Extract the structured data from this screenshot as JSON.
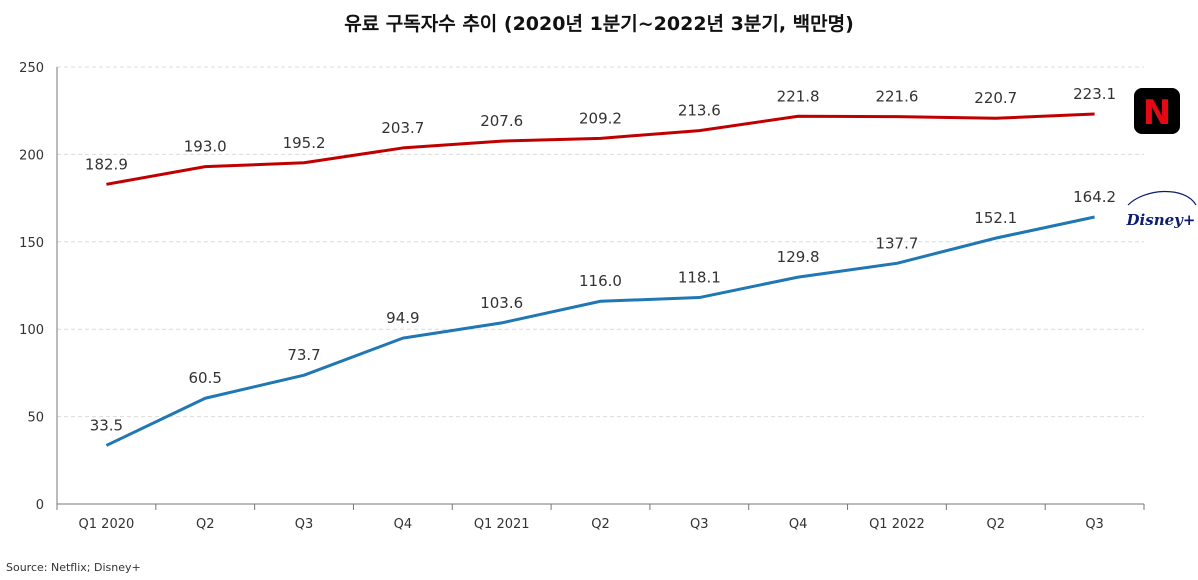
{
  "chart_data": {
    "type": "line",
    "title": "유료 구독자수 추이 (2020년 1분기~2022년 3분기, 백만명)",
    "categories": [
      "Q1 2020",
      "Q2",
      "Q3",
      "Q4",
      "Q1 2021",
      "Q2",
      "Q3",
      "Q4",
      "Q1 2022",
      "Q2",
      "Q3"
    ],
    "series": [
      {
        "name": "Netflix",
        "color": "#c00000",
        "values": [
          182.9,
          193.0,
          195.2,
          203.7,
          207.6,
          209.2,
          213.6,
          221.8,
          221.6,
          220.7,
          223.1
        ]
      },
      {
        "name": "Disney+",
        "color": "#1f77b4",
        "values": [
          33.5,
          60.5,
          73.7,
          94.9,
          103.6,
          116.0,
          118.1,
          129.8,
          137.7,
          152.1,
          164.2
        ]
      }
    ],
    "ylim": [
      0,
      250
    ],
    "yticks": [
      0,
      50,
      100,
      150,
      200,
      250
    ],
    "grid": true,
    "xlabel": "",
    "ylabel": ""
  },
  "logos": {
    "netflix": {
      "text": "N",
      "bg": "#000000",
      "fg": "#e50914"
    },
    "disney": {
      "text": "Disney+",
      "color": "#0b1d6e"
    }
  },
  "source": "Source: Netflix; Disney+"
}
